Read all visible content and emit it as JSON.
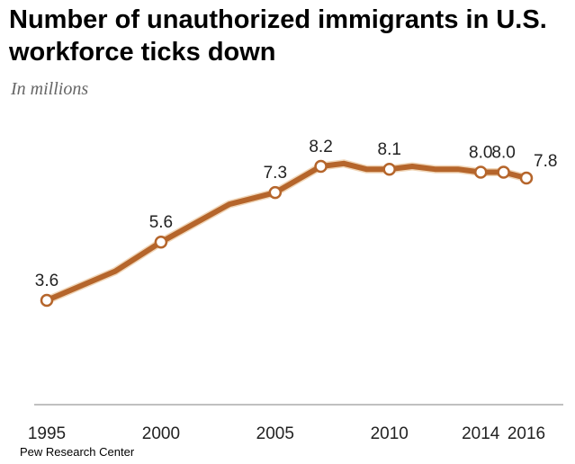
{
  "chart_data": {
    "type": "line",
    "title": "Number of unauthorized immigrants in U.S. workforce ticks down",
    "subtitle": "In millions",
    "source": "Pew Research Center",
    "xlim": [
      1995,
      2016
    ],
    "ylim": [
      0,
      8.2
    ],
    "x_ticks": [
      1995,
      2000,
      2005,
      2010,
      2014,
      2016
    ],
    "series": [
      {
        "name": "Unauthorized immigrants in U.S. workforce",
        "color": "#b5652b",
        "x": [
          1995,
          1998,
          2000,
          2003,
          2005,
          2007,
          2008,
          2009,
          2010,
          2011,
          2012,
          2013,
          2014,
          2015,
          2016
        ],
        "values": [
          3.6,
          4.6,
          5.6,
          6.9,
          7.3,
          8.2,
          8.3,
          8.1,
          8.1,
          8.2,
          8.1,
          8.1,
          8.0,
          8.0,
          7.8
        ]
      }
    ],
    "labeled_points": [
      {
        "x": 1995,
        "value": 3.6,
        "label": "3.6"
      },
      {
        "x": 2000,
        "value": 5.6,
        "label": "5.6"
      },
      {
        "x": 2005,
        "value": 7.3,
        "label": "7.3"
      },
      {
        "x": 2007,
        "value": 8.2,
        "label": "8.2"
      },
      {
        "x": 2010,
        "value": 8.1,
        "label": "8.1"
      },
      {
        "x": 2014,
        "value": 8.0,
        "label": "8.0"
      },
      {
        "x": 2015,
        "value": 8.0,
        "label": "8.0"
      },
      {
        "x": 2016,
        "value": 7.8,
        "label": "7.8"
      }
    ]
  }
}
